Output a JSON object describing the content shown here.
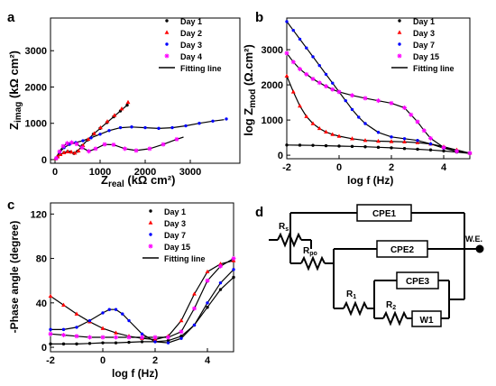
{
  "colors": {
    "day1": "#000000",
    "day2": "#ff0000",
    "day3": "#0000ff",
    "day4": "#ff00ff",
    "fit": "#000000",
    "text": "#000000"
  },
  "chart_data": [
    {
      "panel": "a",
      "type": "scatter",
      "xlabel_main": "Z",
      "xlabel_sub": "real",
      "xlabel_unit": " (kΩ cm²)",
      "ylabel_main": "Z",
      "ylabel_sub": "imag",
      "ylabel_unit": " (kΩ cm²)",
      "xlim": [
        -100,
        4100
      ],
      "ylim": [
        -100,
        3900
      ],
      "xticks": [
        0,
        1000,
        2000,
        3000
      ],
      "yticks": [
        0,
        1000,
        2000,
        3000
      ],
      "legend": [
        "Day 1",
        "Day 2",
        "Day 3",
        "Day 4",
        "Fitting line"
      ],
      "series": [
        {
          "name": "Day 1",
          "color": "#000000",
          "x": [
            20,
            60,
            120,
            200,
            280,
            350,
            420,
            500,
            600,
            720,
            850,
            1000,
            1150,
            1300,
            1450,
            1600
          ],
          "y": [
            30,
            80,
            140,
            190,
            220,
            210,
            170,
            230,
            380,
            540,
            700,
            860,
            1020,
            1180,
            1340,
            1500
          ]
        },
        {
          "name": "Day 2",
          "color": "#ff0000",
          "x": [
            20,
            60,
            120,
            200,
            280,
            360,
            440,
            520,
            620,
            740,
            870,
            1010,
            1160,
            1320,
            1480,
            1620
          ],
          "y": [
            30,
            80,
            140,
            190,
            220,
            210,
            180,
            240,
            390,
            560,
            720,
            880,
            1050,
            1220,
            1400,
            1580
          ]
        },
        {
          "name": "Day 3",
          "color": "#0000ff",
          "x": [
            30,
            100,
            200,
            320,
            460,
            620,
            800,
            1000,
            1200,
            1450,
            1700,
            2000,
            2300,
            2600,
            2900,
            3200,
            3500,
            3800
          ],
          "y": [
            40,
            200,
            330,
            420,
            470,
            520,
            600,
            700,
            800,
            880,
            900,
            880,
            860,
            880,
            930,
            1000,
            1060,
            1120
          ]
        },
        {
          "name": "Day 4",
          "color": "#ff00ff",
          "x": [
            30,
            100,
            180,
            270,
            370,
            480,
            600,
            750,
            900,
            1100,
            1300,
            1550,
            1800,
            2100,
            2400,
            2700
          ],
          "y": [
            40,
            220,
            370,
            450,
            470,
            430,
            330,
            230,
            300,
            420,
            410,
            300,
            250,
            300,
            420,
            560
          ]
        }
      ],
      "fits": [
        {
          "x": [
            0,
            60,
            120,
            200,
            280,
            350,
            420,
            500,
            600,
            720,
            850,
            1000,
            1150,
            1300,
            1450,
            1600
          ],
          "y": [
            0,
            80,
            140,
            190,
            220,
            210,
            170,
            230,
            380,
            540,
            700,
            860,
            1020,
            1180,
            1340,
            1500
          ]
        },
        {
          "x": [
            0,
            100,
            200,
            320,
            460,
            620,
            800,
            1000,
            1200,
            1450,
            1700,
            2000,
            2300,
            2600,
            2900,
            3200,
            3500,
            3750
          ],
          "y": [
            0,
            200,
            330,
            420,
            470,
            520,
            600,
            700,
            800,
            880,
            900,
            880,
            860,
            880,
            930,
            1000,
            1060,
            1100
          ]
        },
        {
          "x": [
            0,
            100,
            180,
            270,
            370,
            480,
            600,
            750,
            900,
            1100,
            1300,
            1550,
            1800,
            2100,
            2400,
            2700,
            2850
          ],
          "y": [
            0,
            220,
            370,
            450,
            470,
            430,
            330,
            230,
            300,
            420,
            410,
            300,
            250,
            300,
            420,
            560,
            620
          ]
        }
      ]
    },
    {
      "panel": "b",
      "type": "line",
      "xlabel": "log f (Hz)",
      "ylabel_main": "log Z",
      "ylabel_sub": "mod",
      "ylabel_unit": " (Ω.cm²)",
      "xlim": [
        -2,
        5
      ],
      "ylim": [
        -100,
        3900
      ],
      "xticks": [
        -2,
        0,
        2,
        4
      ],
      "yticks": [
        0,
        1000,
        2000,
        3000
      ],
      "legend": [
        "Day 1",
        "Day 3",
        "Day 7",
        "Day 15",
        "Fitting line"
      ],
      "series": [
        {
          "name": "Day 1",
          "color": "#000000",
          "x": [
            -2,
            -1.5,
            -1,
            -0.5,
            0,
            0.5,
            1,
            1.5,
            2,
            2.5,
            3,
            3.5,
            4,
            4.5,
            5
          ],
          "y": [
            290,
            285,
            280,
            270,
            260,
            250,
            240,
            225,
            210,
            190,
            170,
            150,
            120,
            90,
            50
          ]
        },
        {
          "name": "Day 3",
          "color": "#ff0000",
          "x": [
            -2,
            -1.75,
            -1.5,
            -1.25,
            -1,
            -0.75,
            -0.5,
            -0.25,
            0,
            0.5,
            1,
            1.5,
            2,
            2.5,
            3,
            3.5,
            4,
            4.5,
            5
          ],
          "y": [
            2250,
            1800,
            1400,
            1100,
            900,
            760,
            660,
            590,
            540,
            470,
            420,
            400,
            390,
            380,
            360,
            320,
            240,
            150,
            60
          ]
        },
        {
          "name": "Day 7",
          "color": "#0000ff",
          "x": [
            -2,
            -1.75,
            -1.5,
            -1.25,
            -1,
            -0.75,
            -0.5,
            -0.25,
            0,
            0.25,
            0.5,
            0.75,
            1,
            1.5,
            2,
            2.5,
            3,
            3.5,
            4,
            4.5,
            5
          ],
          "y": [
            3800,
            3550,
            3300,
            3050,
            2800,
            2550,
            2300,
            2050,
            1800,
            1550,
            1300,
            1080,
            900,
            650,
            520,
            470,
            420,
            320,
            200,
            110,
            60
          ]
        },
        {
          "name": "Day 15",
          "color": "#ff00ff",
          "x": [
            -2,
            -1.75,
            -1.5,
            -1.25,
            -1,
            -0.75,
            -0.5,
            -0.25,
            0,
            0.5,
            1,
            1.5,
            2,
            2.5,
            2.75,
            3,
            3.25,
            3.5,
            4,
            4.5,
            5
          ],
          "y": [
            2900,
            2650,
            2450,
            2300,
            2170,
            2060,
            1960,
            1870,
            1800,
            1700,
            1620,
            1550,
            1480,
            1350,
            1150,
            950,
            700,
            480,
            220,
            110,
            60
          ]
        }
      ]
    },
    {
      "panel": "c",
      "type": "line",
      "xlabel": "log f (Hz)",
      "ylabel": "-Phase angle (degree)",
      "xlim": [
        -2,
        5
      ],
      "ylim": [
        -4,
        130
      ],
      "xticks": [
        -2,
        0,
        2,
        4
      ],
      "yticks": [
        0,
        40,
        80,
        120
      ],
      "legend": [
        "Day 1",
        "Day 3",
        "Day 7",
        "Day 15",
        "Fitting line"
      ],
      "series": [
        {
          "name": "Day 1",
          "color": "#000000",
          "x": [
            -2,
            -1.5,
            -1,
            -0.5,
            0,
            0.5,
            1,
            1.5,
            2,
            2.5,
            3,
            3.5,
            4,
            4.5,
            5
          ],
          "y": [
            3,
            3,
            3,
            3.5,
            4,
            4,
            4.5,
            5,
            5,
            6,
            10,
            20,
            36,
            52,
            63
          ]
        },
        {
          "name": "Day 3",
          "color": "#ff0000",
          "x": [
            -2,
            -1.5,
            -1,
            -0.5,
            0,
            0.5,
            1,
            1.5,
            2,
            2.5,
            3,
            3.5,
            4,
            4.5,
            5
          ],
          "y": [
            46,
            38,
            30,
            23,
            17,
            13,
            10,
            8,
            7,
            10,
            24,
            48,
            68,
            75,
            78
          ]
        },
        {
          "name": "Day 7",
          "color": "#0000ff",
          "x": [
            -2,
            -1.5,
            -1,
            -0.5,
            0,
            0.25,
            0.5,
            0.75,
            1,
            1.5,
            2,
            2.5,
            3,
            3.5,
            4,
            4.5,
            5
          ],
          "y": [
            16,
            16,
            18,
            24,
            31,
            34,
            34,
            30,
            24,
            12,
            5,
            4,
            8,
            20,
            40,
            58,
            70
          ]
        },
        {
          "name": "Day 15",
          "color": "#ff00ff",
          "x": [
            -2,
            -1.5,
            -1,
            -0.5,
            0,
            0.5,
            1,
            1.5,
            2,
            2.5,
            3,
            3.5,
            4,
            4.5,
            5
          ],
          "y": [
            12,
            11,
            10,
            9,
            9,
            9,
            9,
            9,
            9,
            9,
            14,
            35,
            60,
            73,
            80
          ]
        }
      ]
    }
  ],
  "panels": {
    "a": {
      "label": "a"
    },
    "b": {
      "label": "b"
    },
    "c": {
      "label": "c"
    },
    "d": {
      "label": "d"
    }
  },
  "circuit": {
    "rs": "R",
    "rs_sub": "s",
    "rpo": "R",
    "rpo_sub": "po",
    "r1": "R",
    "r1_sub": "1",
    "r2": "R",
    "r2_sub": "2",
    "cpe1": "CPE1",
    "cpe2": "CPE2",
    "cpe3": "CPE3",
    "w1": "W1",
    "we": "W.E."
  }
}
